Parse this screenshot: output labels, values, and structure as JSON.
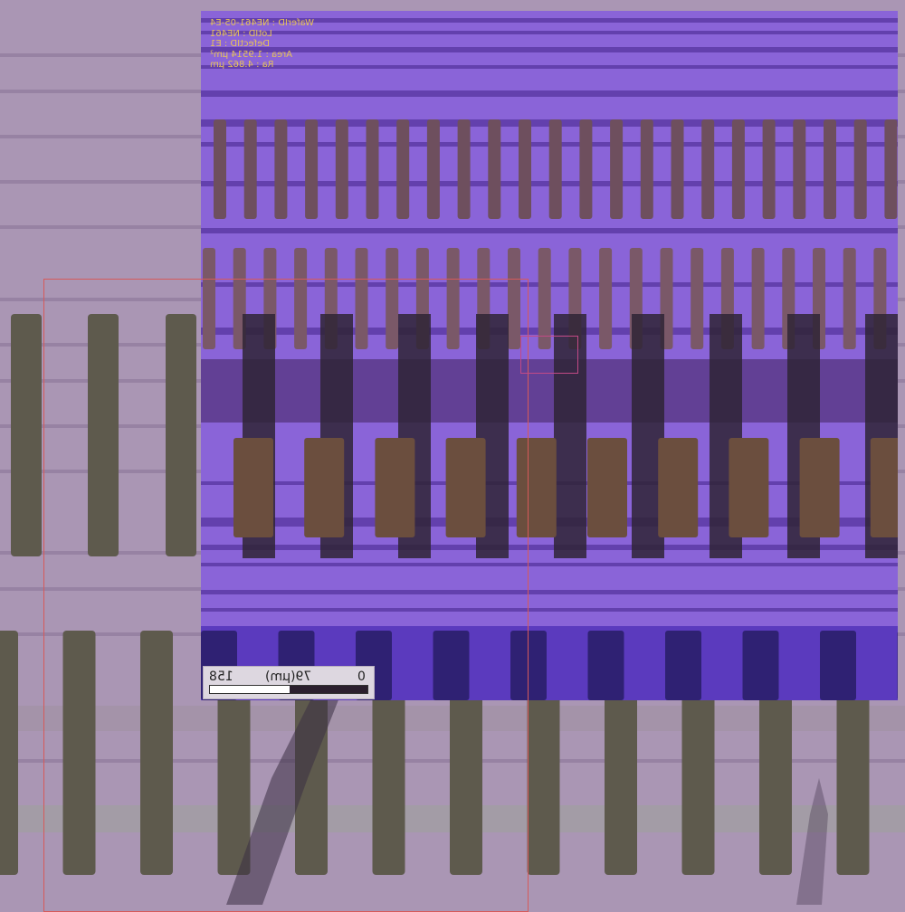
{
  "colors": {
    "base": "#aa96b4",
    "inset": "#8a64d8",
    "metadata_text": "#e6c25a",
    "roi": "#d65a5a",
    "defect_box": "#c24a86"
  },
  "metadata": {
    "wafer_id": "WaferID : NE461-05-E4",
    "lot_id": "LotID : NE461",
    "defect_id": "DefectID : E1",
    "area": "Area : 1.9514 µm²",
    "ra": "Ra : 4.862 µm"
  },
  "scale_bar": {
    "left_label": "158",
    "mid_label": "79(µm)",
    "right_label": "0"
  }
}
